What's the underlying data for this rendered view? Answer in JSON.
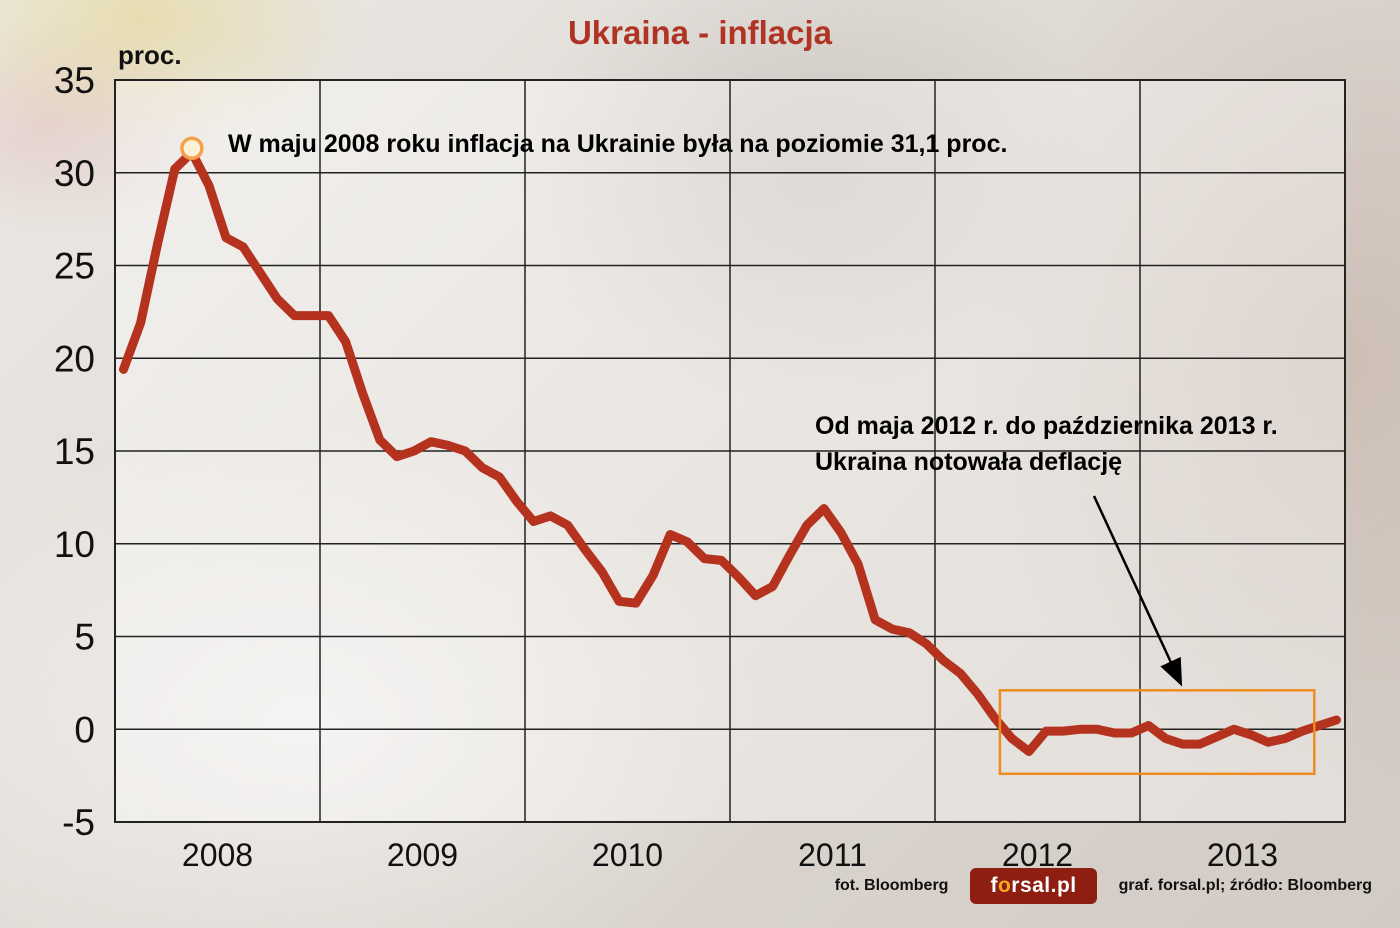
{
  "title": "Ukraina - inflacja",
  "y_axis_label": "proc.",
  "annotations": {
    "peak": "W maju 2008 roku inflacja na Ukrainie była na poziomie 31,1 proc.",
    "deflation_line1": "Od maja 2012 r. do października 2013 r.",
    "deflation_line2": "Ukraina notowała deflację"
  },
  "footer": {
    "photo_credit": "fot. Bloomberg",
    "logo": {
      "part1": "f",
      "part2": "o",
      "part3": "rsal.pl"
    },
    "credits": "graf. forsal.pl;  źródło: Bloomberg"
  },
  "colors": {
    "line": "#b5331e",
    "title": "#b03423",
    "grid": "#222222",
    "highlight_box": "#ef8c1f",
    "marker_stroke": "#f5a04b",
    "marker_fill": "#fdf2d8",
    "arrow": "#000000"
  },
  "chart_data": {
    "type": "line",
    "title": "Ukraina - inflacja",
    "xlabel": "",
    "ylabel": "proc.",
    "ylim": [
      -5,
      35
    ],
    "ytick_interval": 5,
    "grid": true,
    "legend": "none",
    "x_years": [
      2008,
      2009,
      2010,
      2011,
      2012,
      2013
    ],
    "x_start": "2008-01",
    "x_frequency": "monthly",
    "values": [
      19.4,
      21.9,
      26.2,
      30.2,
      31.1,
      29.3,
      26.5,
      26.0,
      24.6,
      23.2,
      22.3,
      22.3,
      22.3,
      20.9,
      18.1,
      15.6,
      14.7,
      15.0,
      15.5,
      15.3,
      15.0,
      14.1,
      13.6,
      12.3,
      11.2,
      11.5,
      11.0,
      9.7,
      8.5,
      6.9,
      6.8,
      8.3,
      10.5,
      10.1,
      9.2,
      9.1,
      8.2,
      7.2,
      7.7,
      9.4,
      11.0,
      11.9,
      10.6,
      8.9,
      5.9,
      5.4,
      5.2,
      4.6,
      3.7,
      3.0,
      1.9,
      0.6,
      -0.5,
      -1.2,
      -0.1,
      -0.1,
      0.0,
      0.0,
      -0.2,
      -0.2,
      0.2,
      -0.5,
      -0.8,
      -0.8,
      -0.4,
      0.0,
      -0.3,
      -0.7,
      -0.5,
      -0.1,
      0.2,
      0.5
    ],
    "peak_marker": {
      "index": 4,
      "value": 31.1,
      "label": "31,1 proc. (maj 2008)"
    },
    "highlight_period": {
      "start_index": 52,
      "end_index": 69,
      "meaning": "deflacja: maj 2012 - październik 2013",
      "y_top": 2.1,
      "y_bottom": -2.4
    }
  }
}
